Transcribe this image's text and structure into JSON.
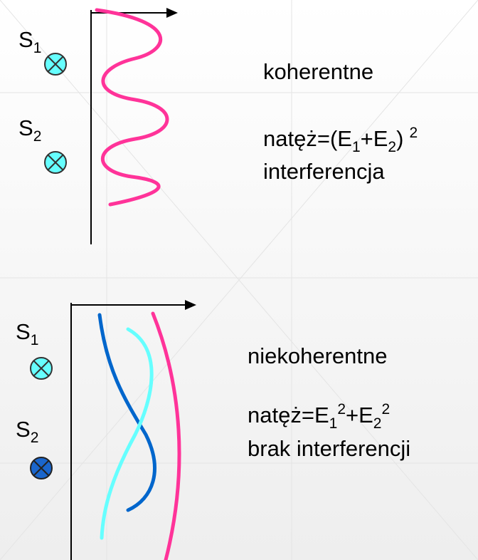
{
  "top": {
    "sources": [
      {
        "letter": "S",
        "index": "1"
      },
      {
        "letter": "S",
        "index": "2"
      }
    ],
    "label": "koherentne",
    "formula": [
      "natęż=(E",
      "1",
      "+E",
      "2",
      ")",
      "2"
    ],
    "result": "interferencja"
  },
  "bottom": {
    "sources": [
      {
        "letter": "S",
        "index": "1"
      },
      {
        "letter": "S",
        "index": "2"
      }
    ],
    "label": "niekoherentne",
    "formula": [
      "natęż=E",
      "1",
      "2",
      "+E",
      "2",
      "2"
    ],
    "result": "brak interferencji"
  }
}
